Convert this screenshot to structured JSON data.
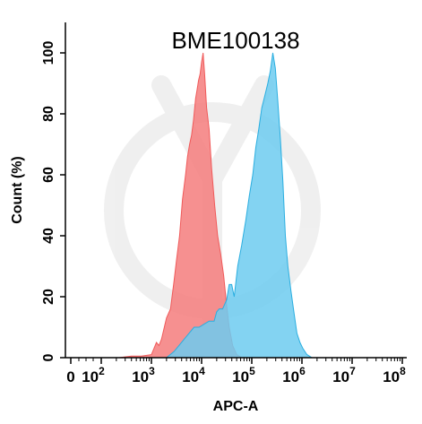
{
  "chart_data": {
    "type": "area",
    "title": "BME100138",
    "xlabel": "APC-A",
    "ylabel": "Count  (%)",
    "xscale": "biexponential-log",
    "ylim": [
      0,
      110
    ],
    "x_ticks": [
      {
        "value": 0,
        "label": "0",
        "exp": ""
      },
      {
        "value": 100,
        "label": "10",
        "exp": "2"
      },
      {
        "value": 1000,
        "label": "10",
        "exp": "3"
      },
      {
        "value": 10000,
        "label": "10",
        "exp": "4"
      },
      {
        "value": 100000,
        "label": "10",
        "exp": "5"
      },
      {
        "value": 1000000,
        "label": "10",
        "exp": "6"
      },
      {
        "value": 10000000,
        "label": "10",
        "exp": "7"
      },
      {
        "value": 100000000,
        "label": "10",
        "exp": "8"
      }
    ],
    "y_ticks": [
      0,
      20,
      40,
      60,
      80,
      100
    ],
    "series": [
      {
        "color": "#f05a5a",
        "fill": "#f47c7c",
        "points": [
          [
            2.35,
            0
          ],
          [
            2.6,
            0.5
          ],
          [
            2.8,
            0.5
          ],
          [
            3.0,
            1
          ],
          [
            3.05,
            3
          ],
          [
            3.1,
            5
          ],
          [
            3.15,
            4
          ],
          [
            3.2,
            6
          ],
          [
            3.3,
            13
          ],
          [
            3.38,
            16
          ],
          [
            3.45,
            25
          ],
          [
            3.5,
            32
          ],
          [
            3.56,
            40
          ],
          [
            3.62,
            52
          ],
          [
            3.68,
            60
          ],
          [
            3.72,
            66
          ],
          [
            3.76,
            70
          ],
          [
            3.8,
            73
          ],
          [
            3.84,
            78
          ],
          [
            3.88,
            85
          ],
          [
            3.91,
            88
          ],
          [
            3.94,
            91
          ],
          [
            3.97,
            93
          ],
          [
            4.0,
            97
          ],
          [
            4.03,
            100
          ],
          [
            4.06,
            93
          ],
          [
            4.1,
            82
          ],
          [
            4.15,
            75
          ],
          [
            4.2,
            62
          ],
          [
            4.26,
            50
          ],
          [
            4.32,
            40
          ],
          [
            4.38,
            34
          ],
          [
            4.44,
            27
          ],
          [
            4.5,
            17
          ],
          [
            4.55,
            10
          ],
          [
            4.62,
            4
          ],
          [
            4.7,
            1
          ],
          [
            4.8,
            0
          ]
        ]
      },
      {
        "color": "#2aaee0",
        "fill": "#6dcbf0",
        "points": [
          [
            3.3,
            0
          ],
          [
            3.45,
            2
          ],
          [
            3.55,
            4
          ],
          [
            3.65,
            6
          ],
          [
            3.75,
            8
          ],
          [
            3.85,
            10
          ],
          [
            3.95,
            10
          ],
          [
            4.05,
            11
          ],
          [
            4.15,
            12
          ],
          [
            4.25,
            12
          ],
          [
            4.3,
            15
          ],
          [
            4.35,
            16
          ],
          [
            4.42,
            16
          ],
          [
            4.5,
            19
          ],
          [
            4.55,
            24
          ],
          [
            4.6,
            24
          ],
          [
            4.65,
            20
          ],
          [
            4.72,
            30
          ],
          [
            4.8,
            37
          ],
          [
            4.88,
            45
          ],
          [
            4.95,
            53
          ],
          [
            5.02,
            60
          ],
          [
            5.08,
            69
          ],
          [
            5.14,
            75
          ],
          [
            5.2,
            82
          ],
          [
            5.26,
            86
          ],
          [
            5.32,
            90
          ],
          [
            5.37,
            94
          ],
          [
            5.42,
            100
          ],
          [
            5.47,
            95
          ],
          [
            5.52,
            84
          ],
          [
            5.57,
            72
          ],
          [
            5.62,
            58
          ],
          [
            5.67,
            40
          ],
          [
            5.72,
            30
          ],
          [
            5.78,
            22
          ],
          [
            5.84,
            15
          ],
          [
            5.9,
            8
          ],
          [
            5.96,
            5
          ],
          [
            6.02,
            3
          ],
          [
            6.1,
            1
          ],
          [
            6.2,
            0
          ]
        ]
      }
    ]
  }
}
